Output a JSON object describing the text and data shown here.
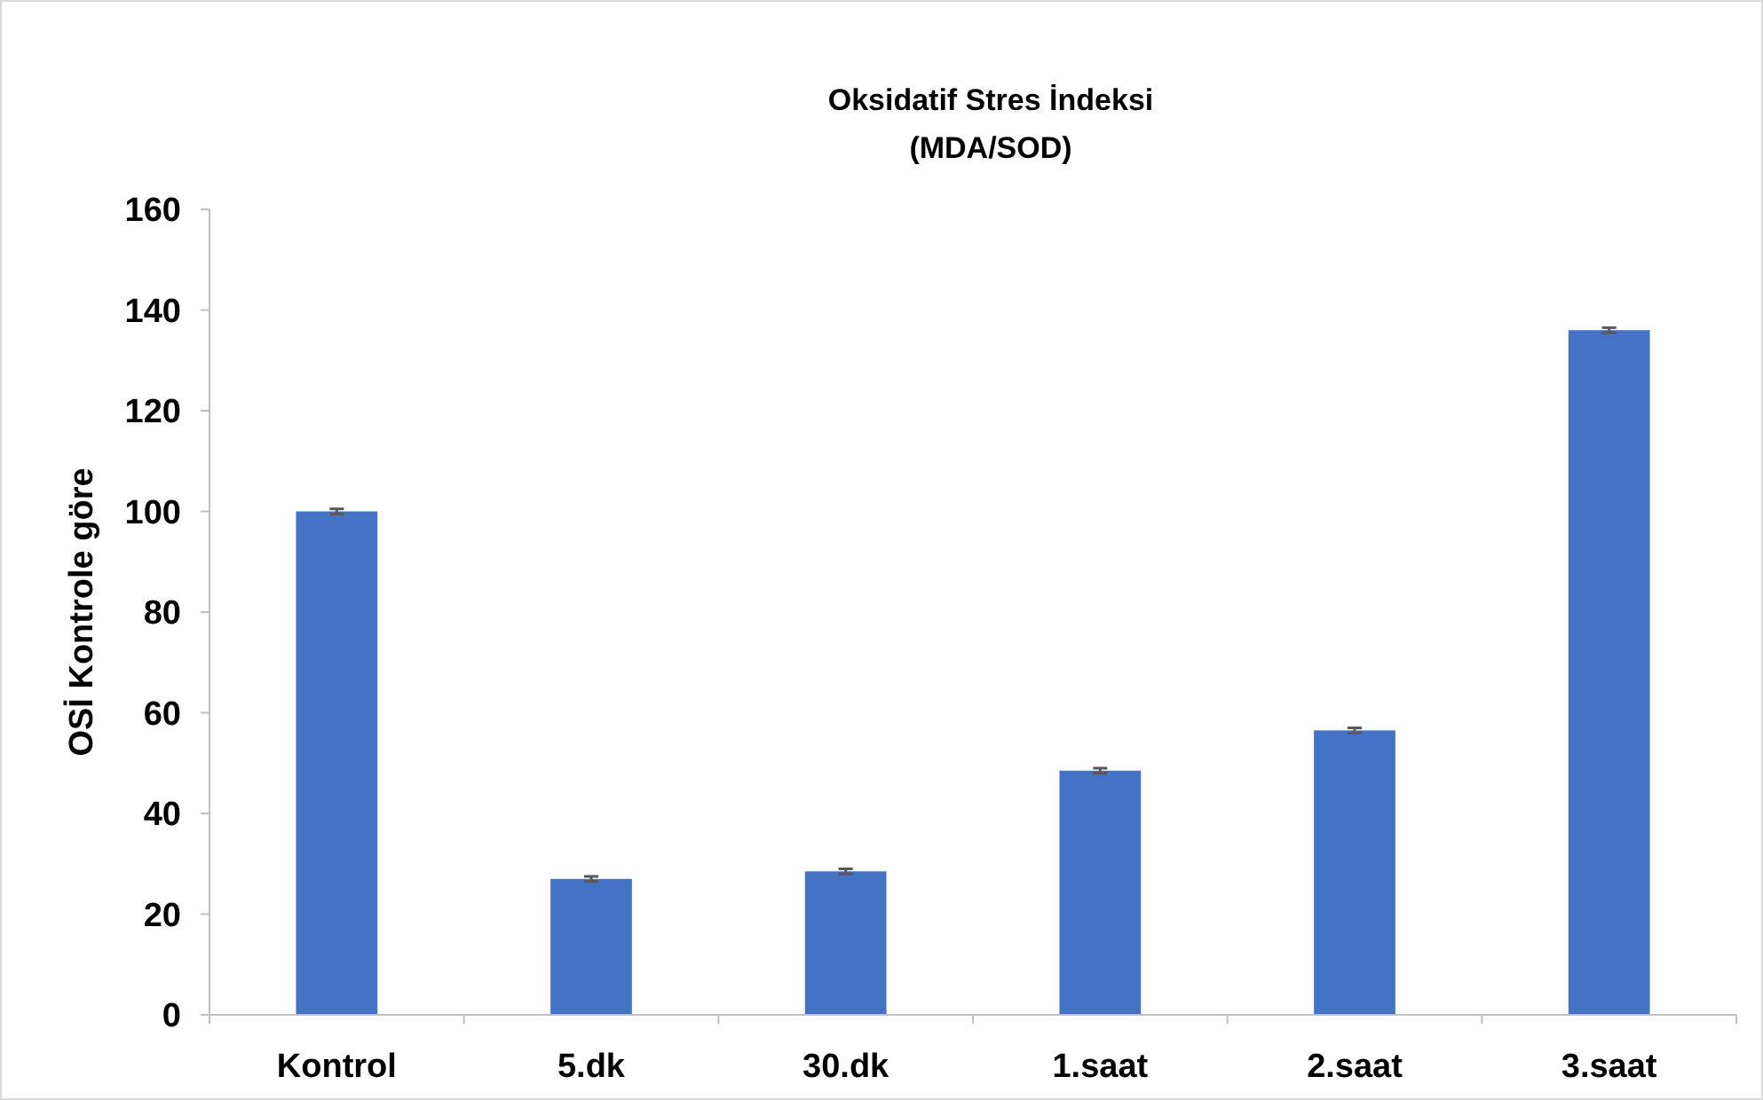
{
  "chart_data": {
    "type": "bar",
    "title": "Oksidatif Stres İndeksi",
    "subtitle": "(MDA/SOD)",
    "ylabel": "OSİ Kontrole göre",
    "categories": [
      "Kontrol",
      "5.dk",
      "30.dk",
      "1.saat",
      "2.saat",
      "3.saat"
    ],
    "values": [
      100,
      27,
      28.5,
      48.5,
      56.5,
      136
    ],
    "errors": [
      0.5,
      0.5,
      0.5,
      0.5,
      0.5,
      0.5
    ],
    "color": "#4472c4",
    "ylim": [
      0,
      160
    ],
    "yticks": [
      0,
      20,
      40,
      60,
      80,
      100,
      120,
      140,
      160
    ],
    "grid": false
  }
}
